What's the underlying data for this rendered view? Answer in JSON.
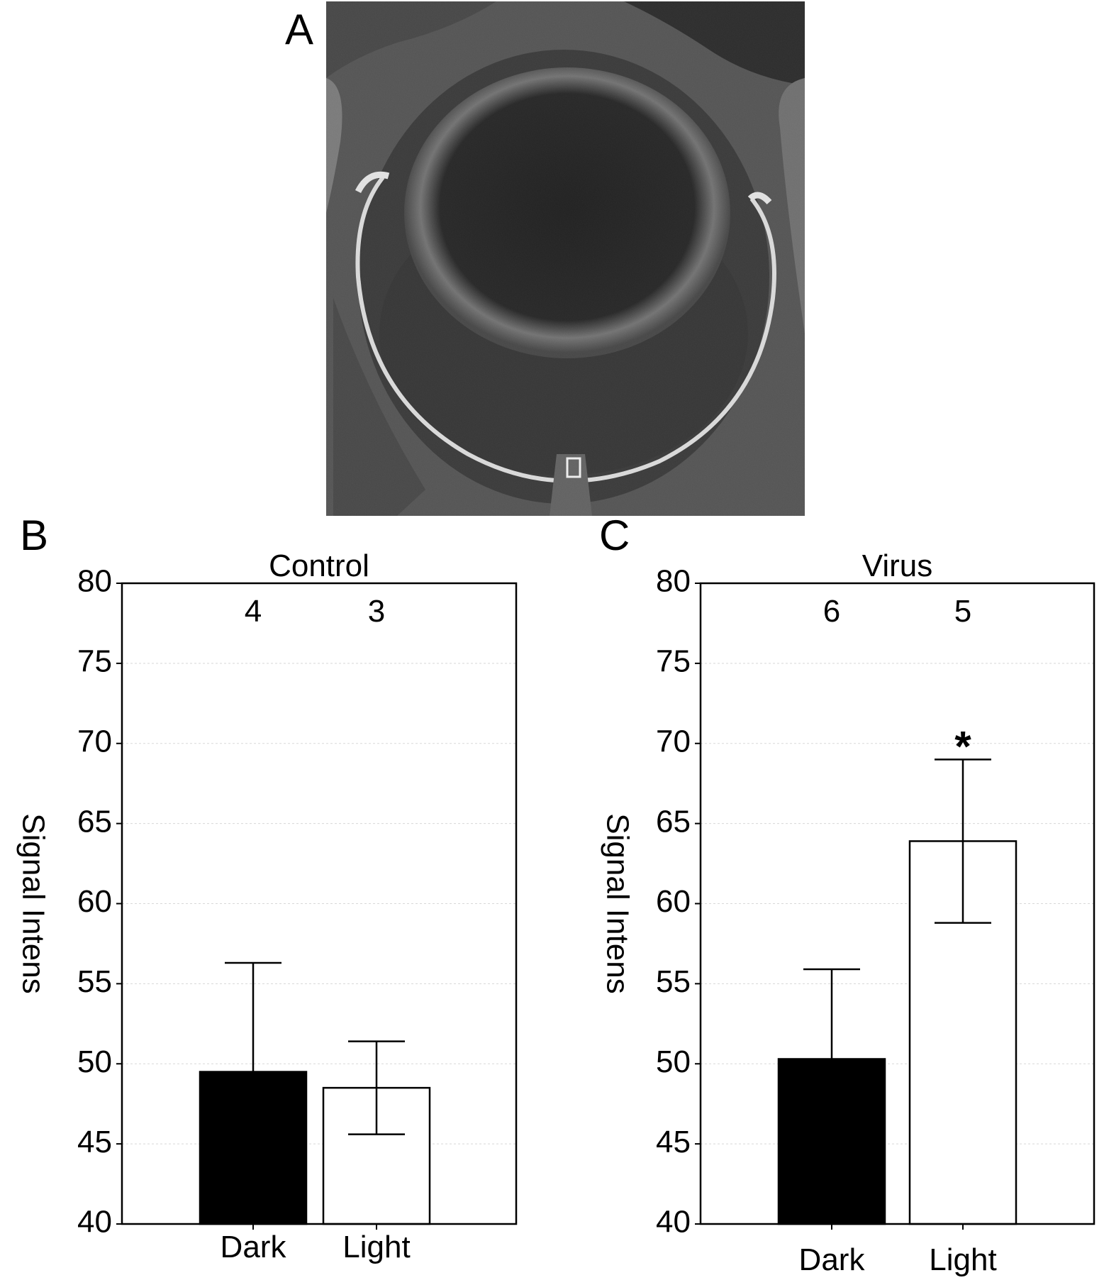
{
  "figure": {
    "panel_a": {
      "letter": "A"
    },
    "panel_b": {
      "letter": "B"
    },
    "panel_c": {
      "letter": "C"
    }
  },
  "chart_data": [
    {
      "type": "bar",
      "panel": "B",
      "title": "Control",
      "xlabel": "",
      "ylabel": "Signal Intens",
      "ylim": [
        40,
        80
      ],
      "yticks": [
        40,
        45,
        50,
        55,
        60,
        65,
        70,
        75,
        80
      ],
      "grid": true,
      "categories": [
        "Dark",
        "Light"
      ],
      "values": [
        49.5,
        48.5
      ],
      "error": [
        6.8,
        2.9
      ],
      "n_labels": [
        "4",
        "3"
      ],
      "bar_colors": [
        "#000000",
        "#ffffff"
      ],
      "annotations": []
    },
    {
      "type": "bar",
      "panel": "C",
      "title": "Virus",
      "xlabel": "",
      "ylabel": "Signal Intens",
      "ylim": [
        40,
        80
      ],
      "yticks": [
        40,
        45,
        50,
        55,
        60,
        65,
        70,
        75,
        80
      ],
      "grid": true,
      "categories": [
        "Dark",
        "Light"
      ],
      "values": [
        50.3,
        63.9
      ],
      "error": [
        5.6,
        5.1
      ],
      "n_labels": [
        "6",
        "5"
      ],
      "bar_colors": [
        "#000000",
        "#ffffff"
      ],
      "annotations": [
        {
          "category": "Light",
          "text": "*"
        }
      ]
    }
  ]
}
